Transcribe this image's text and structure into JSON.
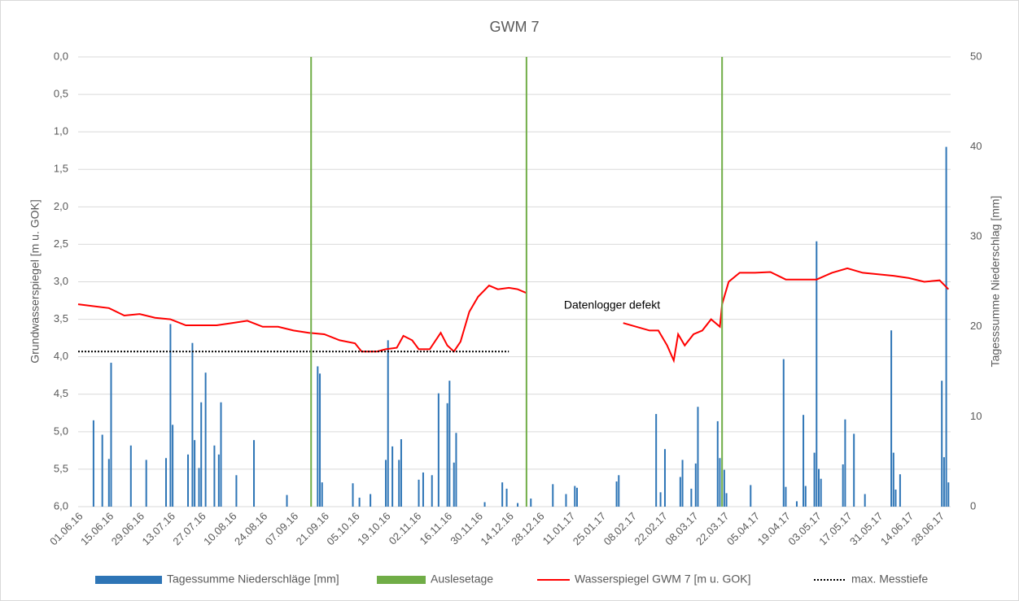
{
  "chart_data": {
    "type": "combo",
    "title": "GWM 7",
    "ylabel": "Grundwasserspiegel [m u. GOK]",
    "y2label": "Tagesssumme Niederschlag [mm]",
    "annotation": "Datenlogger defekt",
    "xlim": [
      "01.06.16",
      "03.07.17"
    ],
    "xticks": [
      "01.06.16",
      "15.06.16",
      "29.06.16",
      "13.07.16",
      "27.07.16",
      "10.08.16",
      "24.08.16",
      "07.09.16",
      "21.09.16",
      "05.10.16",
      "19.10.16",
      "02.11.16",
      "16.11.16",
      "30.11.16",
      "14.12.16",
      "28.12.16",
      "11.01.17",
      "25.01.17",
      "08.02.17",
      "22.02.17",
      "08.03.17",
      "22.03.17",
      "05.04.17",
      "19.04.17",
      "03.05.17",
      "17.05.17",
      "31.05.17",
      "14.06.17",
      "28.06.17"
    ],
    "ylim": [
      0,
      6
    ],
    "y_inverted": true,
    "yticks": [
      {
        "value": 0,
        "label": "0,0"
      },
      {
        "value": 0.5,
        "label": "0,5"
      },
      {
        "value": 1,
        "label": "1,0"
      },
      {
        "value": 1.5,
        "label": "1,5"
      },
      {
        "value": 2,
        "label": "2,0"
      },
      {
        "value": 2.5,
        "label": "2,5"
      },
      {
        "value": 3,
        "label": "3,0"
      },
      {
        "value": 3.5,
        "label": "3,5"
      },
      {
        "value": 4,
        "label": "4,0"
      },
      {
        "value": 4.5,
        "label": "4,5"
      },
      {
        "value": 5,
        "label": "5,0"
      },
      {
        "value": 5.5,
        "label": "5,5"
      },
      {
        "value": 6,
        "label": "6,0"
      }
    ],
    "y2lim": [
      0,
      50
    ],
    "y2ticks": [
      0,
      10,
      20,
      30,
      40,
      50
    ],
    "grid": true,
    "legend": "bottom",
    "series": [
      {
        "name": "Tagessumme Niederschläge [mm]",
        "type": "bar",
        "axis": "y2",
        "color": "#2e75b6",
        "x": [
          "08.06.16",
          "12.06.16",
          "15.06.16",
          "16.06.16",
          "25.06.16",
          "02.07.16",
          "11.07.16",
          "13.07.16",
          "14.07.16",
          "21.07.16",
          "23.07.16",
          "24.07.16",
          "26.07.16",
          "27.07.16",
          "29.07.16",
          "02.08.16",
          "04.08.16",
          "05.08.16",
          "12.08.16",
          "20.08.16",
          "04.09.16",
          "18.09.16",
          "19.09.16",
          "20.09.16",
          "04.10.16",
          "07.10.16",
          "12.10.16",
          "19.10.16",
          "20.10.16",
          "22.10.16",
          "25.10.16",
          "26.10.16",
          "03.11.16",
          "05.11.16",
          "09.11.16",
          "12.11.16",
          "16.11.16",
          "17.11.16",
          "19.11.16",
          "20.11.16",
          "03.12.16",
          "11.12.16",
          "13.12.16",
          "18.12.16",
          "24.12.16",
          "03.01.17",
          "09.01.17",
          "13.01.17",
          "14.01.17",
          "01.02.17",
          "02.02.17",
          "19.02.17",
          "21.02.17",
          "23.02.17",
          "02.03.17",
          "03.03.17",
          "07.03.17",
          "09.03.17",
          "10.03.17",
          "19.03.17",
          "20.03.17",
          "22.03.17",
          "23.03.17",
          "03.04.17",
          "18.04.17",
          "19.04.17",
          "24.04.17",
          "27.04.17",
          "28.04.17",
          "02.05.17",
          "03.05.17",
          "04.05.17",
          "05.05.17",
          "15.05.17",
          "16.05.17",
          "20.05.17",
          "25.05.17",
          "06.06.17",
          "07.06.17",
          "08.06.17",
          "10.06.17",
          "29.06.17",
          "30.06.17",
          "01.07.17",
          "02.07.17"
        ],
        "values": [
          9.6,
          8,
          5.3,
          16,
          6.8,
          5.2,
          5.4,
          20.3,
          9.1,
          5.8,
          18.2,
          7.4,
          4.3,
          11.6,
          14.9,
          6.8,
          5.8,
          11.6,
          3.5,
          7.4,
          1.3,
          15.6,
          14.8,
          2.7,
          2.6,
          1,
          1.4,
          5.2,
          18.5,
          6.7,
          5.2,
          7.5,
          3,
          3.8,
          3.5,
          12.6,
          11.5,
          14,
          4.9,
          8.2,
          0.5,
          2.7,
          2,
          0.4,
          0.9,
          2.5,
          1.4,
          2.3,
          2.1,
          2.8,
          3.5,
          10.3,
          1.6,
          6.4,
          3.3,
          5.2,
          2,
          4.8,
          11.1,
          9.5,
          5.4,
          4.1,
          1.5,
          2.4,
          16.4,
          2.2,
          0.6,
          10.2,
          2.3,
          6,
          29.5,
          4.2,
          3.1,
          4.7,
          9.7,
          8.1,
          1.4,
          19.6,
          6,
          1.9,
          3.6,
          14,
          5.5,
          40,
          2.7
        ]
      },
      {
        "name": "Auslesetage",
        "type": "vline",
        "axis": "y2",
        "color": "#70ad47",
        "x": [
          "15.09.16",
          "22.12.16",
          "21.03.17"
        ],
        "values": [
          50,
          50,
          50
        ]
      },
      {
        "name": "Wasserspiegel GWM 7 [m u. GOK]",
        "type": "line",
        "color": "#ff0000",
        "x": [
          "01.06.16",
          "15.06.16",
          "22.06.16",
          "29.06.16",
          "06.07.16",
          "13.07.16",
          "20.07.16",
          "27.07.16",
          "03.08.16",
          "10.08.16",
          "17.08.16",
          "24.08.16",
          "31.08.16",
          "07.09.16",
          "14.09.16",
          "21.09.16",
          "28.09.16",
          "05.10.16",
          "08.10.16",
          "15.10.16",
          "19.10.16",
          "24.10.16",
          "27.10.16",
          "31.10.16",
          "03.11.16",
          "08.11.16",
          "13.11.16",
          "16.11.16",
          "19.11.16",
          "22.11.16",
          "26.11.16",
          "30.11.16",
          "05.12.16",
          "09.12.16",
          "14.12.16",
          "18.12.16",
          "22.12.16",
          "15.01.17",
          "04.02.17",
          "10.02.17",
          "16.02.17",
          "20.02.17",
          "24.02.17",
          "27.02.17",
          "01.03.17",
          "04.03.17",
          "08.03.17",
          "12.03.17",
          "16.03.17",
          "20.03.17",
          "21.03.17",
          "24.03.17",
          "29.03.17",
          "05.04.17",
          "12.04.17",
          "19.04.17",
          "26.04.17",
          "03.05.17",
          "10.05.17",
          "17.05.17",
          "24.05.17",
          "31.05.17",
          "07.06.17",
          "14.06.17",
          "21.06.17",
          "28.06.17",
          "02.07.17"
        ],
        "values": [
          3.3,
          3.35,
          3.45,
          3.43,
          3.48,
          3.5,
          3.58,
          3.58,
          3.58,
          3.55,
          3.52,
          3.6,
          3.6,
          3.65,
          3.68,
          3.7,
          3.78,
          3.82,
          3.93,
          3.93,
          3.9,
          3.88,
          3.72,
          3.78,
          3.9,
          3.9,
          3.68,
          3.85,
          3.93,
          3.8,
          3.4,
          3.2,
          3.05,
          3.1,
          3.08,
          3.1,
          3.15,
          null,
          3.55,
          3.6,
          3.65,
          3.65,
          3.85,
          4.05,
          3.7,
          3.85,
          3.7,
          3.65,
          3.5,
          3.6,
          3.3,
          3.0,
          2.88,
          2.88,
          2.87,
          2.97,
          2.97,
          2.97,
          2.88,
          2.82,
          2.88,
          2.9,
          2.92,
          2.95,
          3.0,
          2.98,
          3.1
        ]
      },
      {
        "name": "max. Messtiefe",
        "type": "line",
        "dash": "dotted",
        "color": "#000000",
        "x": [
          "01.06.16",
          "14.12.16"
        ],
        "values": [
          3.93,
          3.93
        ]
      }
    ]
  }
}
